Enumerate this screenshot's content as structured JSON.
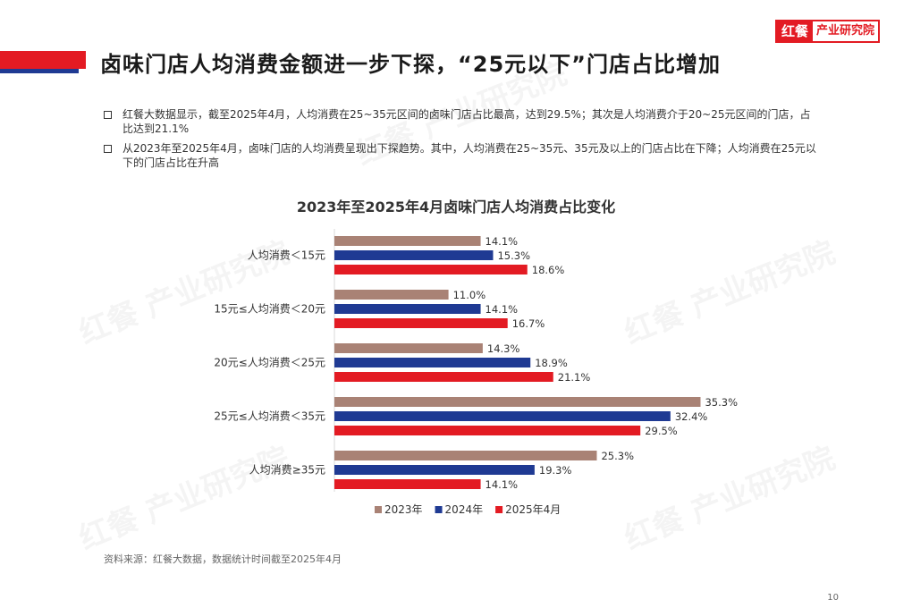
{
  "header": {
    "title": "卤味门店人均消费金额进一步下探，“25元以下”门店占比增加",
    "logo_main": "红餐",
    "logo_sub": "产业研究院"
  },
  "bullets": [
    "红餐大数据显示，截至2025年4月，人均消费在25~35元区间的卤味门店占比最高，达到29.5%；其次是人均消费介于20~25元区间的门店，占比达到21.1%",
    "从2023年至2025年4月，卤味门店的人均消费呈现出下探趋势。其中，人均消费在25~35元、35元及以上的门店占比在下降；人均消费在25元以下的门店占比在升高"
  ],
  "chart_data": {
    "type": "bar",
    "orientation": "horizontal",
    "title": "2023年至2025年4月卤味门店人均消费占比变化",
    "categories": [
      "人均消费＜15元",
      "15元≤人均消费＜20元",
      "20元≤人均消费＜25元",
      "25元≤人均消费＜35元",
      "人均消费≥35元"
    ],
    "series": [
      {
        "name": "2023年",
        "color": "#a98275",
        "values": [
          14.1,
          11.0,
          14.3,
          35.3,
          25.3
        ]
      },
      {
        "name": "2024年",
        "color": "#1f3a93",
        "values": [
          15.3,
          14.1,
          18.9,
          32.4,
          19.3
        ]
      },
      {
        "name": "2025年4月",
        "color": "#e31b23",
        "values": [
          18.6,
          16.7,
          21.1,
          29.5,
          14.1
        ]
      }
    ],
    "value_suffix": "%",
    "xlim": [
      0,
      40
    ],
    "legend": "bottom"
  },
  "source": "资料来源：红餐大数据，数据统计时间截至2025年4月",
  "page_number": "10",
  "watermark": "红餐 产业研究院"
}
